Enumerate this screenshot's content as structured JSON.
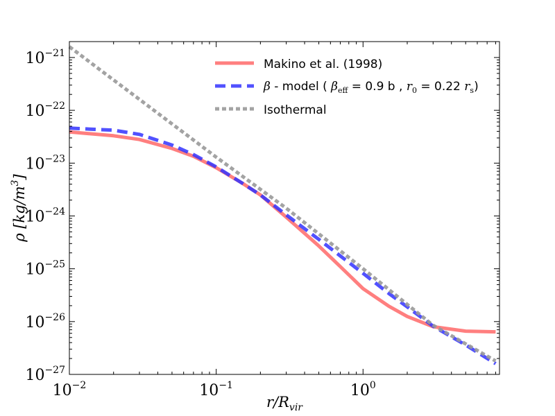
{
  "chart_data": {
    "type": "line",
    "title": "",
    "xlabel": "r/R",
    "xlabel_sub": "vir",
    "ylabel": "ρ [kg/m",
    "ylabel_sup": "3",
    "ylabel_end": "]",
    "xscale": "log",
    "yscale": "log",
    "xlim": [
      0.01,
      8.5
    ],
    "ylim": [
      1e-27,
      2e-21
    ],
    "x_ticks": [
      {
        "value": 0.01,
        "base": "10",
        "exp": "−2"
      },
      {
        "value": 0.1,
        "base": "10",
        "exp": "−1"
      },
      {
        "value": 1,
        "base": "10",
        "exp": "0"
      }
    ],
    "y_ticks": [
      {
        "value": 1e-27,
        "base": "10",
        "exp": "−27"
      },
      {
        "value": 1e-26,
        "base": "10",
        "exp": "−26"
      },
      {
        "value": 1e-25,
        "base": "10",
        "exp": "−25"
      },
      {
        "value": 1e-24,
        "base": "10",
        "exp": "−24"
      },
      {
        "value": 1e-23,
        "base": "10",
        "exp": "−23"
      },
      {
        "value": 1e-22,
        "base": "10",
        "exp": "−22"
      },
      {
        "value": 1e-21,
        "base": "10",
        "exp": "−21"
      }
    ],
    "legend": {
      "position": "upper right",
      "entries": [
        {
          "name": "makino",
          "label": "Makino et al. (1998)"
        },
        {
          "name": "beta",
          "label_parts": {
            "beta": "β",
            "model": " - model ( ",
            "beta_eff": "β",
            "beta_eff_sub": "eff",
            "eq1": " = 0.9 b , ",
            "r0": "r",
            "r0_sub": "0",
            "eq2": " = 0.22 ",
            "rs": "r",
            "rs_sub": "s",
            "close": ")"
          }
        },
        {
          "name": "isothermal",
          "label": "Isothermal"
        }
      ]
    },
    "series": [
      {
        "name": "Makino et al. (1998)",
        "color": "#ff7f7f",
        "style": "solid",
        "x": [
          0.01,
          0.02,
          0.03,
          0.05,
          0.07,
          0.1,
          0.15,
          0.2,
          0.3,
          0.5,
          0.7,
          1,
          1.5,
          2,
          3,
          5,
          8
        ],
        "y": [
          3.9e-23,
          3.3e-23,
          2.8e-23,
          1.9e-23,
          1.35e-23,
          8.2e-24,
          4.2e-24,
          2.5e-24,
          9.5e-25,
          2.7e-25,
          1.1e-25,
          4.2e-26,
          1.95e-26,
          1.25e-26,
          8e-27,
          6.6e-27,
          6.4e-27
        ]
      },
      {
        "name": "beta-model",
        "color": "#3333ff",
        "style": "dashed",
        "x": [
          0.01,
          0.02,
          0.03,
          0.05,
          0.07,
          0.1,
          0.15,
          0.2,
          0.3,
          0.5,
          0.7,
          1,
          1.5,
          2,
          3,
          5,
          8
        ],
        "y": [
          4.6e-23,
          4.2e-23,
          3.5e-23,
          2.2e-23,
          1.45e-23,
          8.5e-24,
          4.2e-24,
          2.5e-24,
          1.05e-24,
          3.6e-25,
          1.75e-25,
          8.2e-26,
          3.4e-26,
          1.9e-26,
          8.2e-27,
          3.6e-27,
          1.6e-27
        ]
      },
      {
        "name": "Isothermal",
        "color": "#999999",
        "style": "dotted",
        "x": [
          0.01,
          0.1,
          0.3,
          1,
          3,
          8
        ],
        "y": [
          1.6e-21,
          1.3e-23,
          1.4e-24,
          1e-25,
          8.5e-27,
          1.8e-27
        ]
      }
    ]
  }
}
